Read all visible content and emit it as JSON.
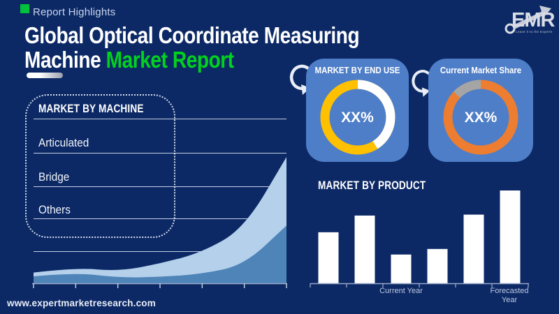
{
  "page": {
    "background_color": "#0C2966",
    "accent_green": "#00D21E",
    "card_blue": "#4E7EC8"
  },
  "header": {
    "eyebrow": "Report Highlights",
    "eyebrow_bullet_icon": "green-square",
    "title_line1": "Global Optical Coordinate Measuring",
    "title_line2_white": "Machine",
    "title_line2_green": "Market Report"
  },
  "logo": {
    "text": "EMR",
    "tagline": "Leave it to the Experts"
  },
  "machine_panel": {
    "title": "MARKET BY MACHINE",
    "items": [
      "Articulated",
      "Bridge",
      "Others"
    ]
  },
  "end_use_card": {
    "title": "MARKET BY END USE",
    "center_value": "XX%"
  },
  "market_share_card": {
    "title": "Current Market Share",
    "center_value": "XX%"
  },
  "product_chart": {
    "title": "MARKET BY PRODUCT",
    "x_labels": [
      "Current Year",
      "Forecasted Year"
    ]
  },
  "footer": {
    "website": "www.expertmarketresearch.com"
  },
  "chart_data": [
    {
      "id": "machine_area",
      "type": "area",
      "title": "MARKET BY MACHINE",
      "x": [
        0,
        1,
        2,
        3,
        4,
        5,
        6
      ],
      "series": [
        {
          "name": "upper-band",
          "color": "#B4D0EB",
          "values": [
            9,
            13,
            10,
            16,
            25,
            44,
            100
          ]
        },
        {
          "name": "lower-band",
          "color": "#4E84B8",
          "values": [
            6,
            9,
            5,
            5.5,
            8,
            15,
            46
          ]
        }
      ],
      "ylim": [
        0,
        100
      ],
      "grid": true,
      "legend": false,
      "note": "decorative unlabeled growth trend; values estimated from pixel heights"
    },
    {
      "id": "end_use_donut",
      "type": "pie",
      "title": "MARKET BY END USE",
      "center_label": "XX%",
      "slices": [
        {
          "name": "primary-segment",
          "value": 59,
          "color": "#FFC000"
        },
        {
          "name": "secondary-segment",
          "value": 41,
          "color": "#FFFFFF"
        }
      ],
      "note": "donut chart; shares estimated from arc angles, labels hidden as XX%"
    },
    {
      "id": "market_share_donut",
      "type": "pie",
      "title": "Current Market Share",
      "center_label": "XX%",
      "slices": [
        {
          "name": "primary-segment",
          "value": 87,
          "color": "#ED7D31"
        },
        {
          "name": "secondary-segment",
          "value": 13,
          "color": "#A5A5A5"
        }
      ],
      "note": "donut chart; shares estimated from arc angles, labels hidden as XX%"
    },
    {
      "id": "product_bars",
      "type": "bar",
      "title": "MARKET BY PRODUCT",
      "categories": [
        "",
        "",
        "Current Year",
        "",
        "",
        "Forecasted Year"
      ],
      "values": [
        55,
        73,
        31,
        37,
        74,
        100
      ],
      "bar_color": "#FFFFFF",
      "ylim": [
        0,
        100
      ],
      "note": "unlabeled axis; values estimated from bar heights relative to tallest bar = 100"
    }
  ]
}
